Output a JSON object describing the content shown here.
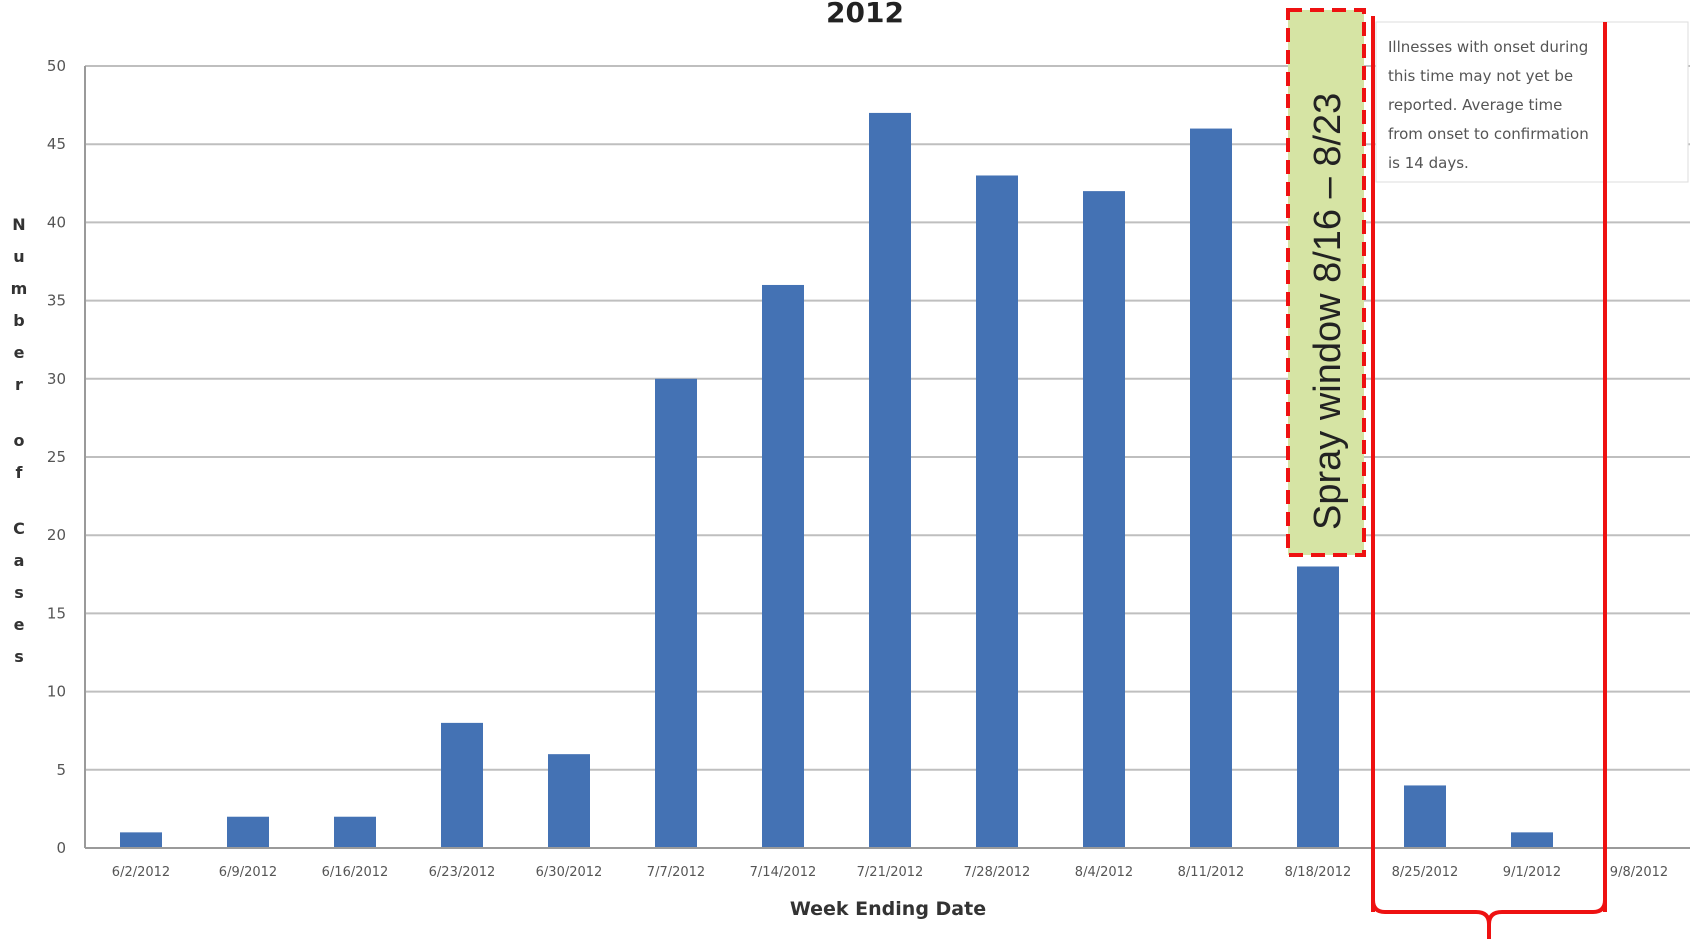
{
  "chart_data": {
    "type": "bar",
    "title": "2012",
    "xlabel": "Week Ending Date",
    "ylabel": "Number of Cases",
    "ylim": [
      0,
      50
    ],
    "yticks": [
      0,
      5,
      10,
      15,
      20,
      25,
      30,
      35,
      40,
      45,
      50
    ],
    "grid": true,
    "categories": [
      "6/2/2012",
      "6/9/2012",
      "6/16/2012",
      "6/23/2012",
      "6/30/2012",
      "7/7/2012",
      "7/14/2012",
      "7/21/2012",
      "7/28/2012",
      "8/4/2012",
      "8/11/2012",
      "8/18/2012",
      "8/25/2012",
      "9/1/2012",
      "9/8/2012"
    ],
    "values": [
      1,
      2,
      2,
      8,
      6,
      30,
      36,
      47,
      43,
      42,
      46,
      18,
      4,
      1,
      0
    ],
    "colors": {
      "bar": "#4472b4",
      "annotation": "#ee1111",
      "spray_fill": "#d6e4a4",
      "grid": "#bfbfbf"
    },
    "annotations": {
      "spray_window": "Spray window 8/16 – 8/23",
      "note_lines": [
        "Illnesses with onset during",
        "this time may not yet be",
        "reported.  Average time",
        "from onset to confirmation",
        "is 14 days."
      ]
    }
  }
}
